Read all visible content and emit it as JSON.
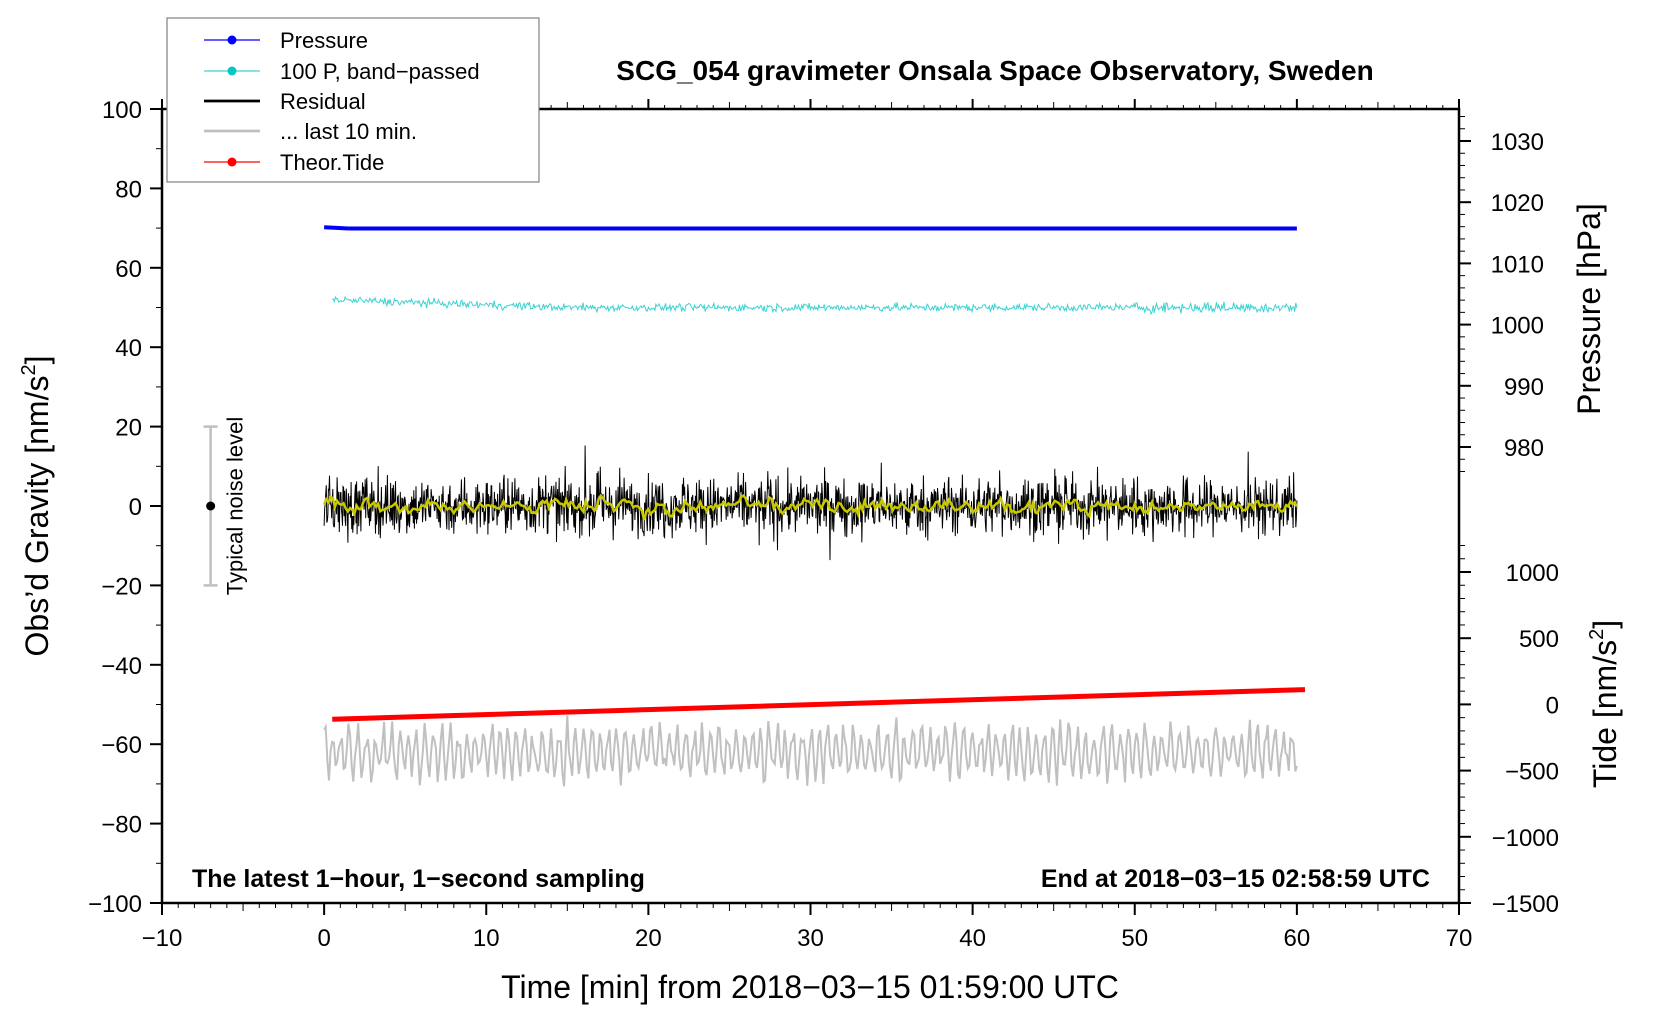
{
  "chart_data": {
    "type": "line",
    "title": "SCG_054 gravimeter Onsala Space Observatory, Sweden",
    "xlabel": "Time [min] from 2018−03−15 01:59:00 UTC",
    "ylabel_left": "Obs’d Gravity [nm/s",
    "ylabel_left_sup": "2",
    "ylabel_left_end": "]",
    "ylabel_right_pressure": "Pressure [hPa]",
    "ylabel_right_tide": "Tide [nm/s",
    "ylabel_right_tide_sup": "2",
    "ylabel_right_tide_end": "]",
    "xlim": [
      -10,
      70
    ],
    "ylim_left": [
      -100,
      100
    ],
    "x_ticks": [
      "−10",
      "0",
      "10",
      "20",
      "30",
      "40",
      "50",
      "60",
      "70"
    ],
    "x_tick_values": [
      -10,
      0,
      10,
      20,
      30,
      40,
      50,
      60,
      70
    ],
    "y_left_ticks": [
      "100",
      "80",
      "60",
      "40",
      "20",
      "0",
      "−20",
      "−40",
      "−60",
      "−80",
      "−100"
    ],
    "y_left_tick_values": [
      100,
      80,
      60,
      40,
      20,
      0,
      -20,
      -40,
      -60,
      -80,
      -100
    ],
    "pressure_ticks": [
      "1030",
      "1020",
      "1010",
      "1000",
      "990",
      "980"
    ],
    "pressure_tick_values": [
      1030,
      1020,
      1010,
      1000,
      990,
      980
    ],
    "tide_ticks": [
      "1000",
      "500",
      "0",
      "−500",
      "−1000",
      "−1500"
    ],
    "tide_tick_values": [
      1000,
      500,
      0,
      -500,
      -1000,
      -1500
    ],
    "legend_position": "top-left",
    "legend": [
      {
        "label": "Pressure",
        "color": "#0000ff",
        "marker": true
      },
      {
        "label": "100 P, band−passed",
        "color": "#00c8c8",
        "marker": true
      },
      {
        "label": "Residual",
        "color": "#000000",
        "marker": false
      },
      {
        "label": "... last 10 min.",
        "color": "#c0c0c0",
        "marker": false
      },
      {
        "label": "Theor.Tide",
        "color": "#ff0000",
        "marker": true
      }
    ],
    "series": [
      {
        "name": "Pressure",
        "axis": "pressure_hPa",
        "x_range": [
          0,
          60
        ],
        "value_start": 1015.9,
        "value_end": 1015.7,
        "color": "#0000ff"
      },
      {
        "name": "100 P, band-passed",
        "axis": "gravity_offset",
        "x_range": [
          0,
          60
        ],
        "level_start": 52,
        "level_end": 50,
        "noise_amplitude": 2,
        "color": "#3cd2d2"
      },
      {
        "name": "Residual",
        "axis": "gravity",
        "x_range": [
          0,
          60
        ],
        "level": 0,
        "noise_amplitude": 9,
        "color": "#000000"
      },
      {
        "name": "Residual smoothed",
        "axis": "gravity",
        "x_range": [
          0,
          60
        ],
        "level": 0,
        "noise_amplitude": 2,
        "color": "#c8c800"
      },
      {
        "name": "... last 10 min.",
        "axis": "gravity_offset",
        "x_range": [
          0,
          60
        ],
        "level": -62,
        "noise_amplitude": 8,
        "color": "#c0c0c0"
      },
      {
        "name": "Theor.Tide",
        "axis": "tide_nm_s2",
        "x_range": [
          0.5,
          60.5
        ],
        "value_start": -112,
        "value_end": 112,
        "color": "#ff0000"
      }
    ],
    "noise_indicator": {
      "label": "Typical noise level",
      "x": -7,
      "center": 0,
      "range": [
        -20,
        20
      ]
    },
    "annotations": {
      "bottom_left": "The latest 1−hour, 1−second sampling",
      "bottom_right": "End at 2018−03−15 02:58:59 UTC"
    }
  }
}
